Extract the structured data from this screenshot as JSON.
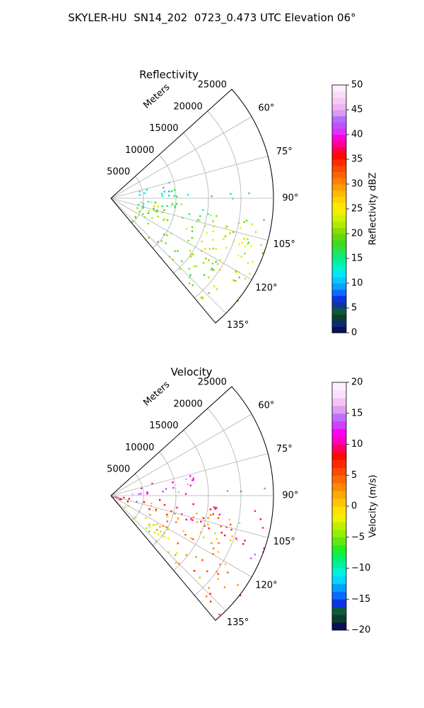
{
  "title": "SKYLER-HU  SN14_202  0723_0.473 UTC Elevation 06°",
  "chart_data": [
    {
      "type": "heatmap",
      "title": "Reflectivity",
      "projection": "polar-sector",
      "azimuth_range": [
        48,
        140
      ],
      "range_label": "Meters",
      "range_ticks": [
        5000,
        10000,
        15000,
        20000,
        25000
      ],
      "range_max": 25000,
      "azimuth_ticks": [
        "60°",
        "75°",
        "90°",
        "105°",
        "120°",
        "135°"
      ],
      "grid": true,
      "colorbar": {
        "label": "Reflectivity dBZ",
        "min": 0,
        "max": 50,
        "ticks": [
          "0",
          "5",
          "10",
          "15",
          "20",
          "25",
          "30",
          "35",
          "40",
          "45",
          "50"
        ]
      },
      "echo_regions": [
        {
          "az_from": 72,
          "az_to": 84,
          "r_from": 3000,
          "r_to": 10000,
          "value": 12
        },
        {
          "az_from": 80,
          "az_to": 88,
          "r_from": 6500,
          "r_to": 14000,
          "value": 15
        },
        {
          "az_from": 86,
          "az_to": 90,
          "r_from": 14500,
          "r_to": 24000,
          "value": 17
        },
        {
          "az_from": 94,
          "az_to": 138,
          "r_from": 4000,
          "r_to": 25000,
          "value": 20
        },
        {
          "az_from": 94,
          "az_to": 104,
          "r_from": 4000,
          "r_to": 16000,
          "value": 15
        },
        {
          "az_from": 100,
          "az_to": 120,
          "r_from": 14000,
          "r_to": 24500,
          "value": 24
        },
        {
          "az_from": 108,
          "az_to": 124,
          "r_from": 19000,
          "r_to": 25000,
          "value": 27
        }
      ],
      "colors": [
        "#08115a",
        "#0a2a7a",
        "#0c3d2e",
        "#0e5a3c",
        "#1035a0",
        "#0a35e6",
        "#0a6cff",
        "#0aa0ff",
        "#0ac8ff",
        "#00e6ff",
        "#00f0d0",
        "#00f0a0",
        "#10e878",
        "#30e040",
        "#44d81c",
        "#66d80a",
        "#88e000",
        "#b0ea00",
        "#d0f000",
        "#eef000",
        "#ffe800",
        "#ffd200",
        "#ffb800",
        "#ff9c00",
        "#ff8000",
        "#ff6400",
        "#ff4800",
        "#ff2a00",
        "#ff0a00",
        "#ff0040",
        "#ff0090",
        "#ff00d8",
        "#e030ff",
        "#c050ff",
        "#b070ff",
        "#d89cf0",
        "#f0b4f0",
        "#f4cbf4",
        "#f8ddf8",
        "#fceefc"
      ]
    },
    {
      "type": "heatmap",
      "title": "Velocity",
      "projection": "polar-sector",
      "azimuth_range": [
        48,
        140
      ],
      "range_label": "Meters",
      "range_ticks": [
        5000,
        10000,
        15000,
        20000,
        25000
      ],
      "range_max": 25000,
      "azimuth_ticks": [
        "60°",
        "75°",
        "90°",
        "105°",
        "120°",
        "135°"
      ],
      "grid": true,
      "colorbar": {
        "label": "Velocity (m/s)",
        "min": -20,
        "max": 20,
        "ticks": [
          "−20",
          "−15",
          "−10",
          "−5",
          "0",
          "5",
          "10",
          "15",
          "20"
        ]
      },
      "echo_regions": [
        {
          "az_from": 72,
          "az_to": 88,
          "r_from": 3000,
          "r_to": 14000,
          "value": 13
        },
        {
          "az_from": 86,
          "az_to": 90,
          "r_from": 17000,
          "r_to": 24000,
          "value": 13
        },
        {
          "az_from": 94,
          "az_to": 110,
          "r_from": 0,
          "r_to": 24000,
          "value": 8
        },
        {
          "az_from": 100,
          "az_to": 130,
          "r_from": 6000,
          "r_to": 22000,
          "value": 3
        },
        {
          "az_from": 124,
          "az_to": 138,
          "r_from": 14000,
          "r_to": 25000,
          "value": 5
        },
        {
          "az_from": 118,
          "az_to": 136,
          "r_from": 2500,
          "r_to": 14000,
          "value": -3
        },
        {
          "az_from": 108,
          "az_to": 118,
          "r_from": 21500,
          "r_to": 25000,
          "value": 13
        }
      ],
      "colors": [
        "#08115a",
        "#0c3d2e",
        "#0e5a3c",
        "#0a35e6",
        "#0a6cff",
        "#00a0ff",
        "#00d8ff",
        "#00f0e0",
        "#00f0a0",
        "#00f060",
        "#20f020",
        "#60e810",
        "#90f000",
        "#c0f000",
        "#f0f000",
        "#ffe000",
        "#ffc400",
        "#ffa800",
        "#ff8800",
        "#ff6800",
        "#ff4800",
        "#ff2a00",
        "#ff0a00",
        "#ff0060",
        "#ff00c0",
        "#ff00f0",
        "#d040ff",
        "#c070ff",
        "#e0a0f0",
        "#f4c4f4",
        "#fae0fa",
        "#fdf0fd"
      ]
    }
  ]
}
